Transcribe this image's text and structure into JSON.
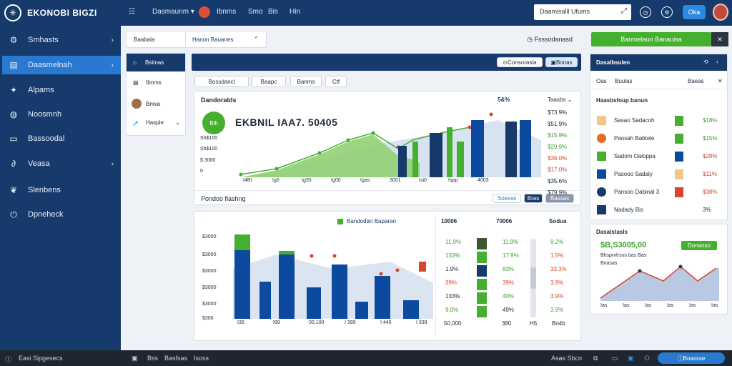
{
  "topbar": {
    "brand": "EKONOBI BIGZI",
    "menu_icon": "grid-icon",
    "nav_dropdown": "Dasmaunm",
    "nav_links": [
      "Ibnms",
      "Smo",
      "Bis",
      "Hin"
    ],
    "search_placeholder": "Daamisalll Ufums",
    "button": "Oka"
  },
  "sidebar": {
    "items": [
      {
        "label": "Smhasts",
        "icon": "gear-icon",
        "chevron": true
      },
      {
        "label": "Daasmelnah",
        "icon": "clipboard-icon",
        "chevron": true
      },
      {
        "label": "Alpams",
        "icon": "puzzle-icon",
        "chevron": false
      },
      {
        "label": "Noosmnh",
        "icon": "globe-icon",
        "chevron": false
      },
      {
        "label": "Bassoodal",
        "icon": "window-icon",
        "chevron": false
      },
      {
        "label": "Veasa",
        "icon": "link-icon",
        "chevron": true
      },
      {
        "label": "Slenbens",
        "icon": "leaf-icon",
        "chevron": false
      },
      {
        "label": "Dpneheck",
        "icon": "power-icon",
        "chevron": false
      }
    ]
  },
  "toolbar": {
    "tab_left": "Baabala",
    "tab_right": "Hanon Bauanes",
    "status": "Fsssodanasd",
    "action_button": "Banmelaun Banauisa"
  },
  "subnav": {
    "active": "Bsimas",
    "items": [
      "Ibnms",
      "Bnwa",
      "Haspie"
    ]
  },
  "main_header": {
    "button1": "Consorasla",
    "button2": "Bonas"
  },
  "filters": [
    "Bossdancl",
    "Baapc",
    "Banms",
    "Ctf"
  ],
  "top_chart": {
    "title": "Dandoralds",
    "badge": "Blh",
    "headline": "EKBNIL IAA7. 50405",
    "col_head": "5&%",
    "col_head2": "Taasbs",
    "ylabels": [
      "Sh$100",
      "Sh$100",
      "$ 3000",
      "0"
    ],
    "xlabels": [
      "I4BI",
      "Ig0",
      "Ig35",
      "Ig00",
      "Igas",
      "3001",
      "Isi0",
      "Ispp",
      "4003"
    ],
    "right_values": [
      {
        "v": "$73.9%",
        "c": "d"
      },
      {
        "v": "$51.9%",
        "c": "d"
      },
      {
        "v": "$15.9%",
        "c": "g"
      },
      {
        "v": "$29.9%",
        "c": "g"
      },
      {
        "v": "$36.0%",
        "c": "r"
      },
      {
        "v": "$17.0%",
        "c": "r"
      },
      {
        "v": "$35.6%",
        "c": "d"
      },
      {
        "v": "$79.9%",
        "c": "d"
      }
    ],
    "footer": "Pondoo flashng",
    "footer_buttons": [
      "Soesss",
      "Bras",
      "Bassas"
    ]
  },
  "bottom_chart": {
    "legend": "Bandodan Baparao",
    "ylabels": [
      "$3000",
      "$3000",
      "$3000",
      "$3000",
      "$3000",
      "$300"
    ],
    "xlabels": [
      "I39",
      "I99",
      "00,100",
      "I 399",
      "I 440",
      "I 339"
    ],
    "col_heads": [
      "10006",
      "70006",
      "Sodua"
    ],
    "col1": [
      {
        "v": "11.9%",
        "c": "g"
      },
      {
        "v": "133%",
        "c": "g"
      },
      {
        "v": "1.9%",
        "c": "d"
      },
      {
        "v": "39%",
        "c": "r"
      },
      {
        "v": "133%",
        "c": "d"
      },
      {
        "v": "9.0%",
        "c": "g"
      }
    ],
    "col2": [
      {
        "v": "11.9%",
        "c": "g"
      },
      {
        "v": "17.9%",
        "c": "g"
      },
      {
        "v": "83%",
        "c": "g"
      },
      {
        "v": "39%",
        "c": "r"
      },
      {
        "v": "40%",
        "c": "g"
      },
      {
        "v": "49%",
        "c": "d"
      }
    ],
    "col3": [
      {
        "v": "9.2%",
        "c": "g"
      },
      {
        "v": "1.5%",
        "c": "r"
      },
      {
        "v": "33.3%",
        "c": "r"
      },
      {
        "v": "3.9%",
        "c": "r"
      },
      {
        "v": "3.9%",
        "c": "r"
      },
      {
        "v": "3.9%",
        "c": "g"
      }
    ],
    "footer_cols": [
      "50,000",
      "380",
      "H5",
      "Bo4b"
    ]
  },
  "right_panel": {
    "title": "Dasalbsulen",
    "sub_left": "Oas",
    "sub_mid": "Buulas",
    "sub_right": "Baeas",
    "card_title": "Haasbsfoup banun",
    "rows": [
      {
        "label": "Sasao Sadacoh",
        "value": "$18%",
        "c": "g"
      },
      {
        "label": "Paosah Babtele",
        "value": "$15%",
        "c": "g"
      },
      {
        "label": "Sadom Oaloppa",
        "value": "$28%",
        "c": "r"
      },
      {
        "label": "Pasooo Sadaly",
        "value": "$11%",
        "c": "r"
      },
      {
        "label": "Pansoo Dabinal 3",
        "value": "$38%",
        "c": "r"
      },
      {
        "label": "Nadady Bis",
        "value": "3%",
        "c": "d"
      }
    ],
    "mini_title": "Dasalstasls",
    "mini_button": "Donanso",
    "mini_value": "$B,S3005,00",
    "mini_sub1": "Bhspnrlrsos bas Bas",
    "mini_sub2": "Bnasas",
    "mini_x": [
      "Ias",
      "Ias",
      "Ias",
      "Ias",
      "Ias",
      "Ias"
    ]
  },
  "bottombar": {
    "left": "Easi Sipgesecs",
    "middle": [
      "Bss",
      "Basfsas",
      "Isoss"
    ],
    "right": "Asas Sbco",
    "button": "Boassse"
  }
}
